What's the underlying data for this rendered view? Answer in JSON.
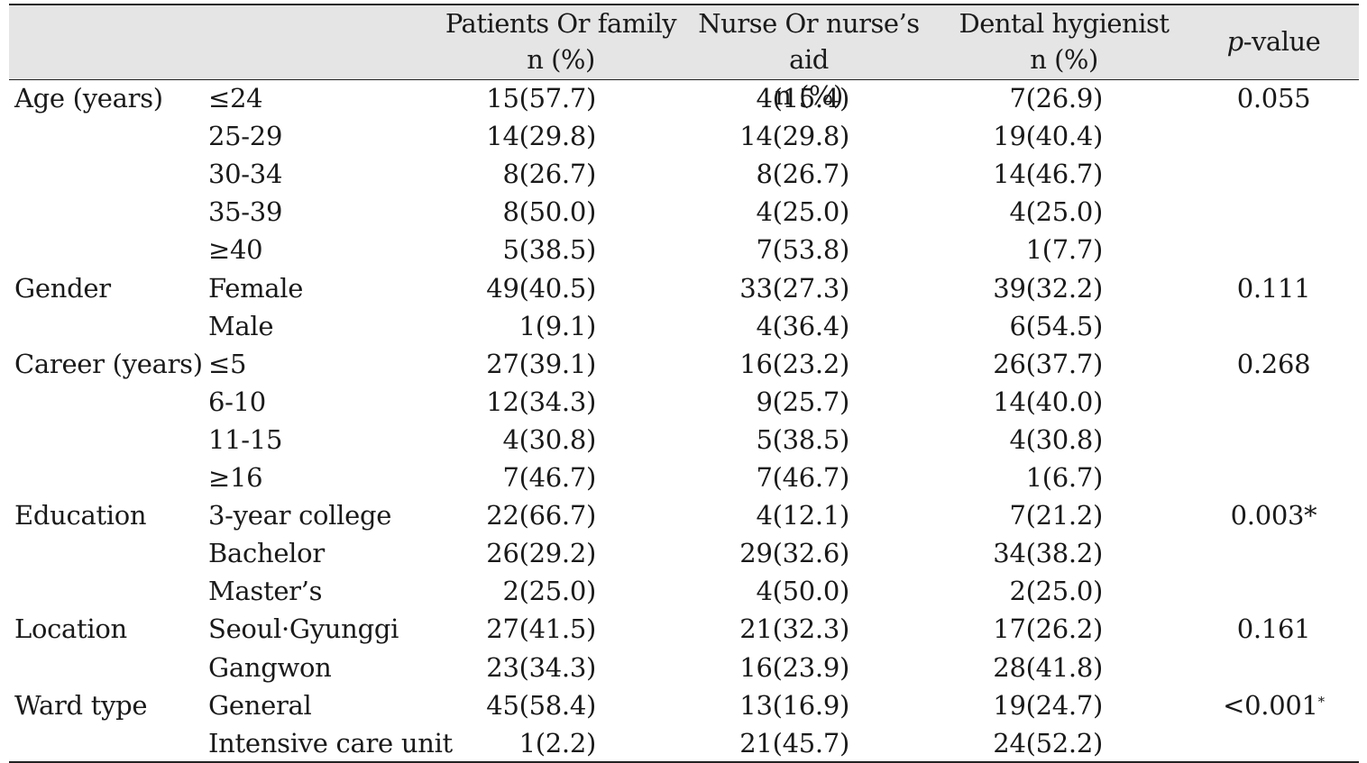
{
  "header": {
    "col1": {
      "line1": "Patients Or family",
      "line2": "n (%)"
    },
    "col2": {
      "line1": "Nurse Or nurse’s aid",
      "line2": "n (%)"
    },
    "col3": {
      "line1": "Dental hygienist",
      "line2": "n (%)"
    },
    "pvalue": {
      "italic": "p",
      "rest": "-value"
    }
  },
  "rows": [
    {
      "cat": "Age (years)",
      "sub": "≤24",
      "c1": "15(57.7)",
      "c2": "4(15.4)",
      "c3": "7(26.9)",
      "p": "0.055",
      "mark": ""
    },
    {
      "cat": "",
      "sub": "25-29",
      "c1": "14(29.8)",
      "c2": "14(29.8)",
      "c3": "19(40.4)",
      "p": "",
      "mark": ""
    },
    {
      "cat": "",
      "sub": "30-34",
      "c1": "8(26.7)",
      "c2": "8(26.7)",
      "c3": "14(46.7)",
      "p": "",
      "mark": ""
    },
    {
      "cat": "",
      "sub": "35-39",
      "c1": "8(50.0)",
      "c2": "4(25.0)",
      "c3": "4(25.0)",
      "p": "",
      "mark": ""
    },
    {
      "cat": "",
      "sub": "≥40",
      "c1": "5(38.5)",
      "c2": "7(53.8)",
      "c3": "1(7.7)",
      "p": "",
      "mark": ""
    },
    {
      "cat": "Gender",
      "sub": "Female",
      "c1": "49(40.5)",
      "c2": "33(27.3)",
      "c3": "39(32.2)",
      "p": "0.111",
      "mark": ""
    },
    {
      "cat": "",
      "sub": "Male",
      "c1": "1(9.1)",
      "c2": "4(36.4)",
      "c3": "6(54.5)",
      "p": "",
      "mark": ""
    },
    {
      "cat": "Career (years)",
      "sub": "≤5",
      "c1": "27(39.1)",
      "c2": "16(23.2)",
      "c3": "26(37.7)",
      "p": "0.268",
      "mark": ""
    },
    {
      "cat": "",
      "sub": "6-10",
      "c1": "12(34.3)",
      "c2": "9(25.7)",
      "c3": "14(40.0)",
      "p": "",
      "mark": ""
    },
    {
      "cat": "",
      "sub": "11-15",
      "c1": "4(30.8)",
      "c2": "5(38.5)",
      "c3": "4(30.8)",
      "p": "",
      "mark": ""
    },
    {
      "cat": "",
      "sub": "≥16",
      "c1": "7(46.7)",
      "c2": "7(46.7)",
      "c3": "1(6.7)",
      "p": "",
      "mark": ""
    },
    {
      "cat": "Education",
      "sub": "3-year college",
      "c1": "22(66.7)",
      "c2": "4(12.1)",
      "c3": "7(21.2)",
      "p": "0.003*",
      "mark": ""
    },
    {
      "cat": "",
      "sub": "Bachelor",
      "c1": "26(29.2)",
      "c2": "29(32.6)",
      "c3": "34(38.2)",
      "p": "",
      "mark": ""
    },
    {
      "cat": "",
      "sub": "Master’s",
      "c1": "2(25.0)",
      "c2": "4(50.0)",
      "c3": "2(25.0)",
      "p": "",
      "mark": ""
    },
    {
      "cat": "Location",
      "sub": "Seoul·Gyunggi",
      "c1": "27(41.5)",
      "c2": "21(32.3)",
      "c3": "17(26.2)",
      "p": "0.161",
      "mark": ""
    },
    {
      "cat": "",
      "sub": "Gangwon",
      "c1": "23(34.3)",
      "c2": "16(23.9)",
      "c3": "28(41.8)",
      "p": "",
      "mark": ""
    },
    {
      "cat": "Ward type",
      "sub": "General",
      "c1": "45(58.4)",
      "c2": "13(16.9)",
      "c3": "19(24.7)",
      "p": "<0.001",
      "mark": "*"
    },
    {
      "cat": "",
      "sub": "Intensive care unit",
      "c1": "1(2.2)",
      "c2": "21(45.7)",
      "c3": "24(52.2)",
      "p": "",
      "mark": ""
    }
  ]
}
